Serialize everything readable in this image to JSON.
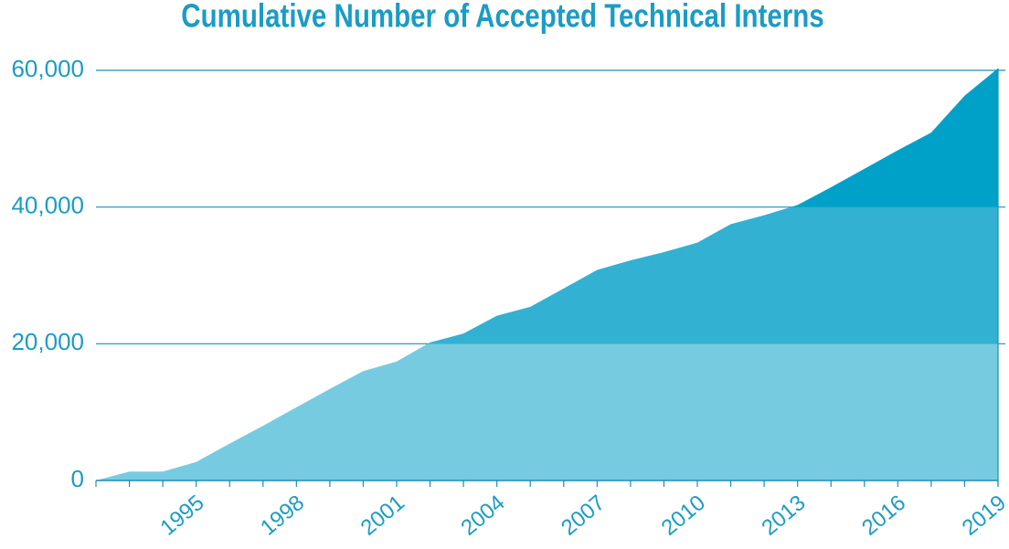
{
  "chart_data": {
    "type": "area",
    "title": "Cumulative Number of Accepted Technical Interns",
    "x": [
      1992,
      1993,
      1994,
      1995,
      1996,
      1997,
      1998,
      1999,
      2000,
      2001,
      2002,
      2003,
      2004,
      2005,
      2006,
      2007,
      2008,
      2009,
      2010,
      2011,
      2012,
      2013,
      2014,
      2015,
      2016,
      2017,
      2018,
      2019
    ],
    "values": [
      0,
      1300,
      1300,
      2700,
      5400,
      8000,
      10700,
      13400,
      16000,
      17400,
      20200,
      21500,
      24100,
      25400,
      28100,
      30800,
      32200,
      33400,
      34800,
      37500,
      38800,
      40300,
      42900,
      45600,
      48300,
      50900,
      56300,
      60300
    ],
    "xlim": [
      1992,
      2019
    ],
    "xticks": [
      1995,
      1998,
      2001,
      2004,
      2007,
      2010,
      2013,
      2016,
      2019
    ],
    "ylim": [
      0,
      60000
    ],
    "yticks": [
      0,
      {
        "value": 20000,
        "label": "20,000"
      },
      {
        "value": 40000,
        "label": "40,000"
      },
      {
        "value": 60000,
        "label": "60,000"
      }
    ],
    "grid": true,
    "band_colors": [
      "#76cbe1",
      "#33b1d3",
      "#00a1c8"
    ],
    "grid_color": "#1a8fb5"
  }
}
